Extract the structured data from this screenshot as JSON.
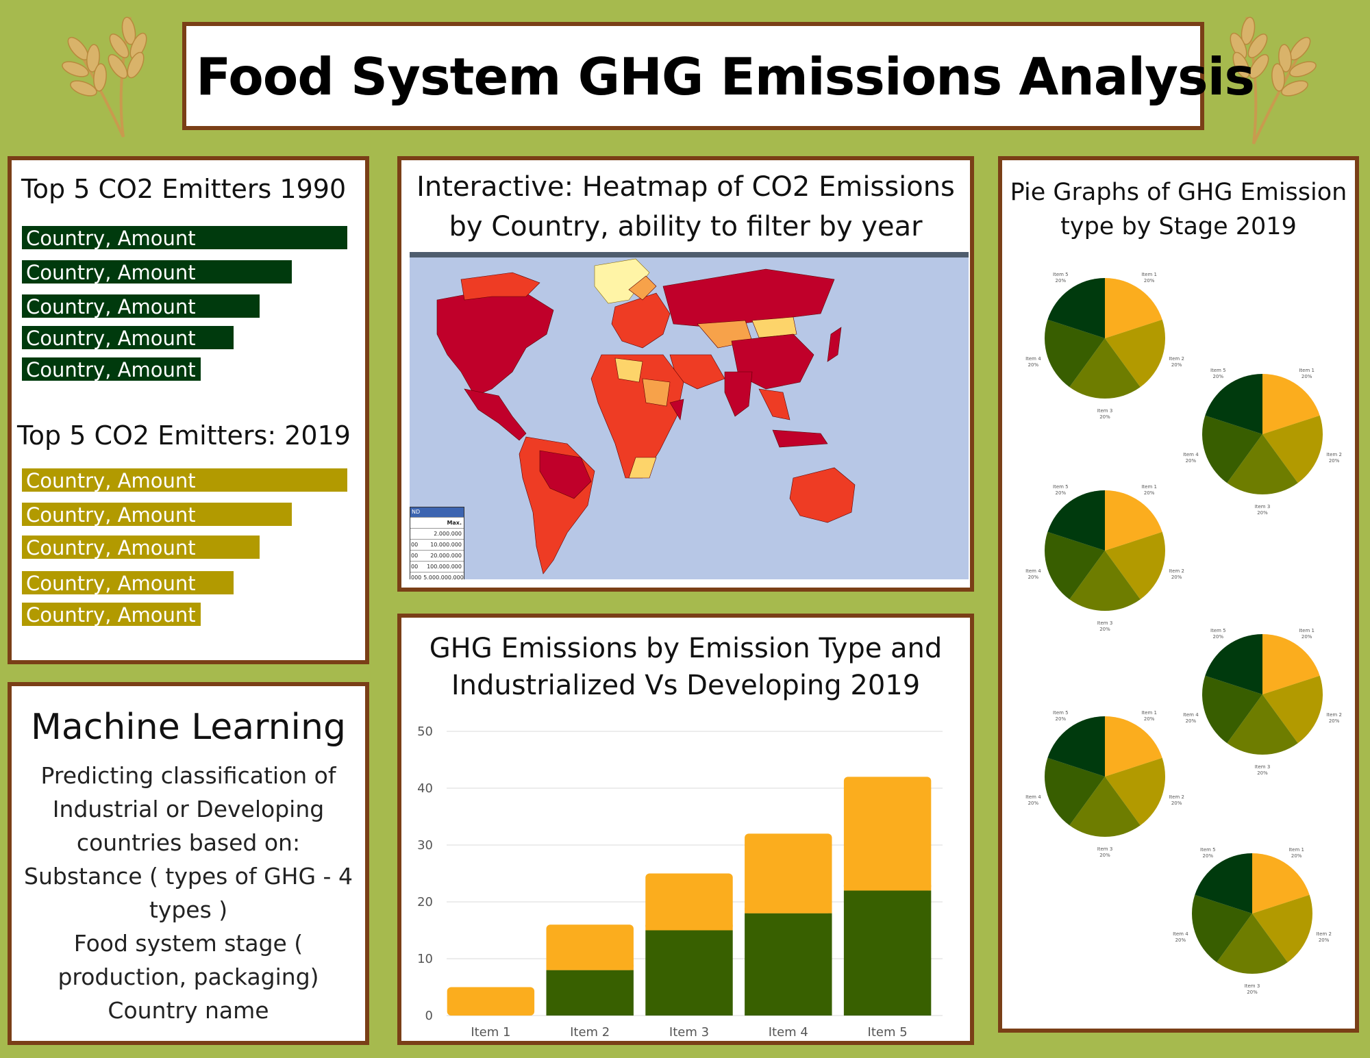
{
  "header": {
    "title": "Food System GHG Emissions Analysis"
  },
  "top5": {
    "heading_1990": "Top 5  CO2 Emitters 1990",
    "items_1990": [
      {
        "label": "Country, Amount",
        "value": 1.0
      },
      {
        "label": "Country, Amount",
        "value": 0.83
      },
      {
        "label": "Country, Amount",
        "value": 0.73
      },
      {
        "label": "Country, Amount",
        "value": 0.65
      },
      {
        "label": "Country, Amount",
        "value": 0.55
      }
    ],
    "heading_2019": "Top 5  CO2 Emitters: 2019",
    "items_2019": [
      {
        "label": "Country, Amount",
        "value": 1.0
      },
      {
        "label": "Country, Amount",
        "value": 0.83
      },
      {
        "label": "Country, Amount",
        "value": 0.73
      },
      {
        "label": "Country, Amount",
        "value": 0.65
      },
      {
        "label": "Country, Amount",
        "value": 0.55
      }
    ],
    "colors": {
      "1990": "#003a0d",
      "2019": "#b29a00"
    }
  },
  "ml": {
    "title": "Machine Learning",
    "lines": [
      "Predicting classification of",
      "Industrial or Developing",
      "countries based on:",
      "Substance ( types of GHG - 4",
      "types )",
      "Food system stage (",
      "production, packaging)",
      "Country name"
    ]
  },
  "heatmap": {
    "title_line1": "Interactive: Heatmap of CO2 Emissions",
    "title_line2": "by Country, ability to filter by year",
    "legend": {
      "header": "ND",
      "max_header": "Max.",
      "rows": [
        {
          "min": "",
          "max": "2.000.000"
        },
        {
          "min": "00",
          "max": "10.000.000"
        },
        {
          "min": "00",
          "max": "20.000.000"
        },
        {
          "min": "00",
          "max": "100.000.000"
        },
        {
          "min": "000",
          "max": "5.000.000.000"
        }
      ]
    }
  },
  "chart_data": [
    {
      "type": "bar",
      "title": "GHG Emissions by Emission Type and Industrialized Vs Developing 2019",
      "stacked": true,
      "categories": [
        "Item 1",
        "Item 2",
        "Item 3",
        "Item 4",
        "Item 5"
      ],
      "series": [
        {
          "values": [
            0,
            8,
            15,
            18,
            22
          ],
          "color": "#386000"
        },
        {
          "values": [
            5,
            8,
            10,
            14,
            20
          ],
          "color": "#fbad1e"
        }
      ],
      "ylim": [
        0,
        50
      ],
      "yticks": [
        0,
        10,
        20,
        30,
        40,
        50
      ],
      "grid": true
    },
    {
      "type": "pie",
      "title": "Pie Graphs of GHG Emission type by Stage 2019",
      "count": 6,
      "slices": [
        {
          "label": "Item 1",
          "value": 20,
          "pct": "20%",
          "color": "#fbad1e"
        },
        {
          "label": "Item 2",
          "value": 20,
          "pct": "20%",
          "color": "#b29a00"
        },
        {
          "label": "Item 3",
          "value": 20,
          "pct": "20%",
          "color": "#6e7d00"
        },
        {
          "label": "Item 4",
          "value": 20,
          "pct": "20%",
          "color": "#385e00"
        },
        {
          "label": "Item 5",
          "value": 20,
          "pct": "20%",
          "color": "#003a0d"
        }
      ]
    }
  ],
  "pie_panel": {
    "title_line1": "Pie Graphs of GHG Emission",
    "title_line2": "type by Stage 2019"
  }
}
